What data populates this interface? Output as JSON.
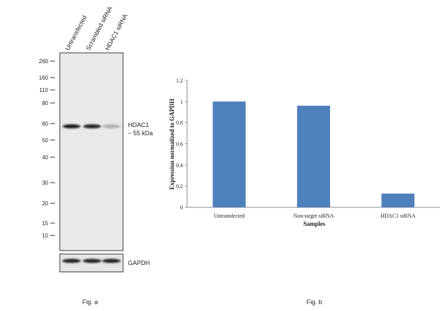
{
  "blot": {
    "lanes": [
      "Untransfected",
      "Scrambled siRNA",
      "HDAC1 siRNA"
    ],
    "markers": [
      260,
      160,
      110,
      80,
      60,
      50,
      40,
      30,
      20,
      15,
      10
    ],
    "band_label": "HDAC1",
    "band_size": "~ 55 kDa",
    "control_label": "GAPDH",
    "caption": "Fig. a"
  },
  "chart_data": {
    "type": "bar",
    "categories": [
      "Untransfected",
      "Non-target siRNA",
      "HDAC1 siRNA"
    ],
    "values": [
      1,
      0.96,
      0.13
    ],
    "color": "#4f81bd",
    "ylim": [
      0,
      1.2
    ],
    "yticks": [
      0,
      0.2,
      0.4,
      0.6,
      0.8,
      1,
      1.2
    ],
    "xlabel": "Samples",
    "ylabel": "Expression normalized to GAPDH",
    "caption": "Fig. b"
  }
}
